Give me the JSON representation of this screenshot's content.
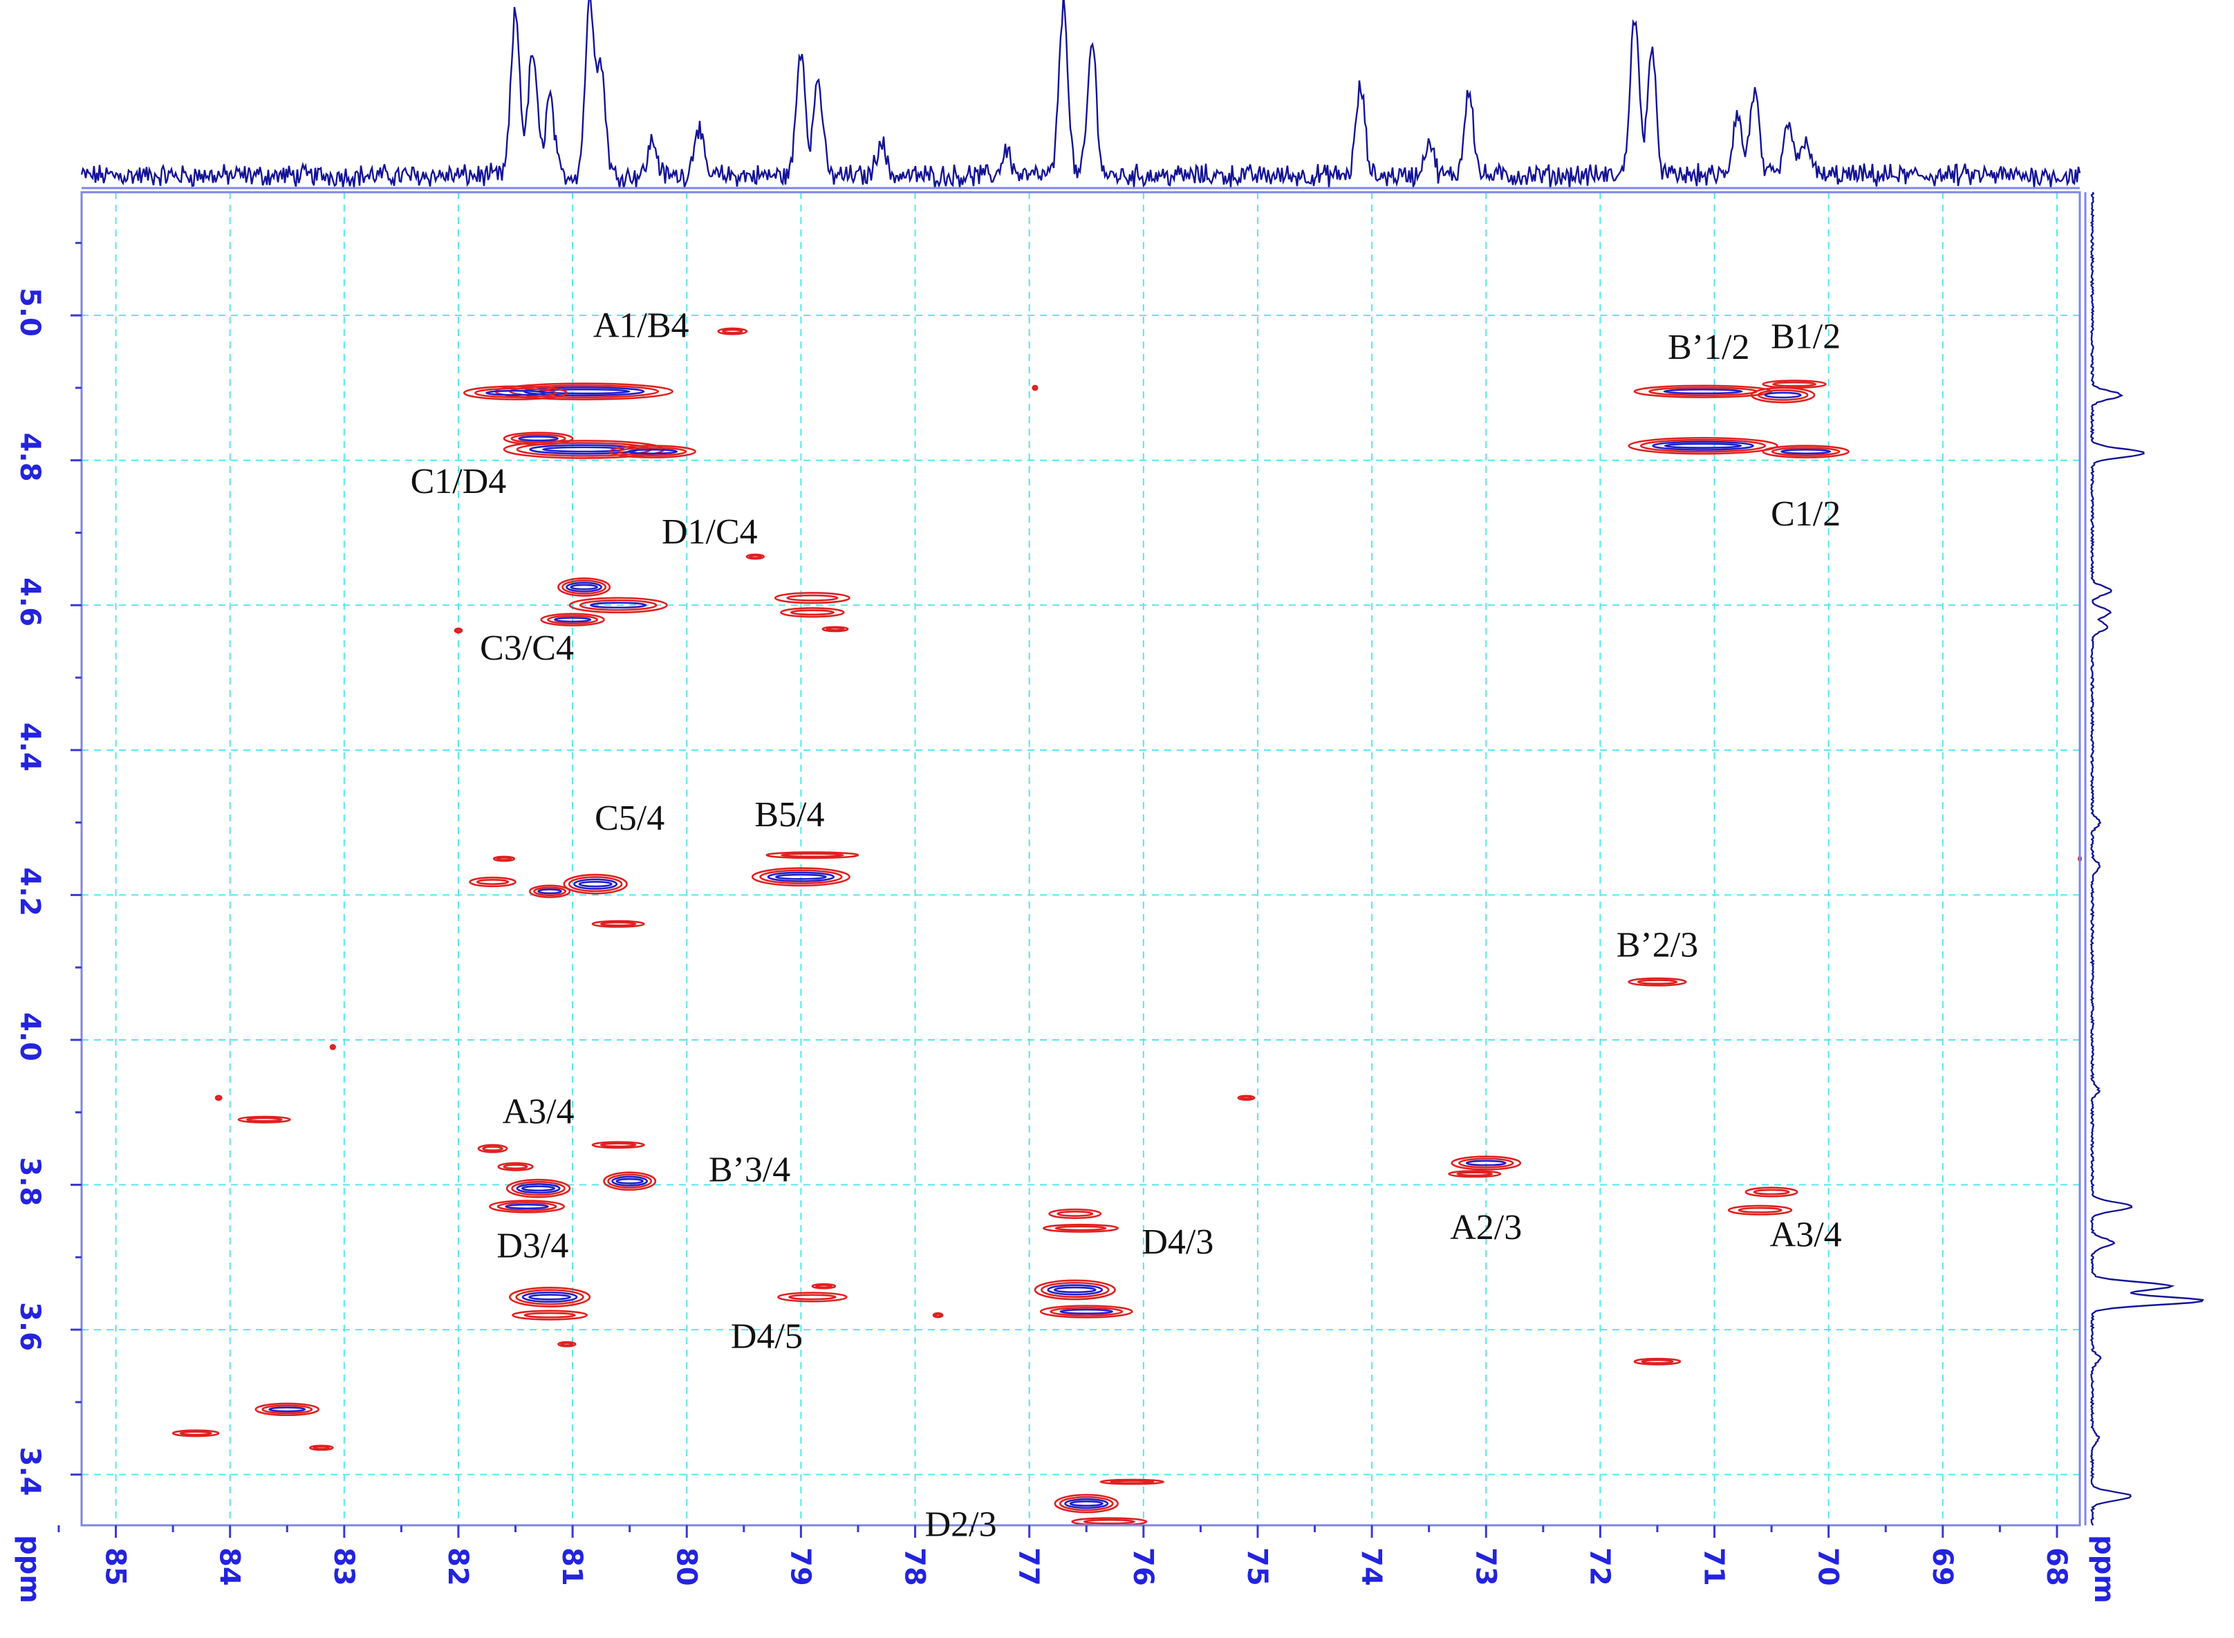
{
  "chart_data": {
    "type": "2d-nmr-contour",
    "title": "",
    "xlabel": "ppm",
    "ylabel": "ppm",
    "xlim": [
      85.3,
      67.8
    ],
    "ylim": [
      5.17,
      3.33
    ],
    "x_ticks": [
      85,
      84,
      83,
      82,
      81,
      80,
      79,
      78,
      77,
      76,
      75,
      74,
      73,
      72,
      71,
      70,
      69,
      68
    ],
    "y_ticks": [
      {
        "value": 5.0,
        "label": "5.0"
      },
      {
        "value": 4.8,
        "label": "4.8"
      },
      {
        "value": 4.6,
        "label": "4.6"
      },
      {
        "value": 4.4,
        "label": "4.4"
      },
      {
        "value": 4.2,
        "label": "4.2"
      },
      {
        "value": 4.0,
        "label": "4.0"
      },
      {
        "value": 3.8,
        "label": "3.8"
      },
      {
        "value": 3.6,
        "label": "3.6"
      },
      {
        "value": 3.4,
        "label": "3.4"
      }
    ],
    "grid": true,
    "colors": {
      "red": "#e02020",
      "blue": "#1f1fc8",
      "black": "#111111",
      "grid": "#55e6f0",
      "axis": "#2323e0",
      "spectrum": "#141496"
    },
    "top_projection_peaks": [
      {
        "ppm": 81.5,
        "height": 0.92
      },
      {
        "ppm": 81.35,
        "height": 0.7
      },
      {
        "ppm": 81.2,
        "height": 0.45
      },
      {
        "ppm": 80.85,
        "height": 0.98
      },
      {
        "ppm": 80.75,
        "height": 0.6
      },
      {
        "ppm": 80.3,
        "height": 0.2
      },
      {
        "ppm": 79.9,
        "height": 0.28
      },
      {
        "ppm": 79.0,
        "height": 0.72
      },
      {
        "ppm": 78.85,
        "height": 0.55
      },
      {
        "ppm": 78.3,
        "height": 0.2
      },
      {
        "ppm": 77.2,
        "height": 0.15
      },
      {
        "ppm": 76.7,
        "height": 0.97
      },
      {
        "ppm": 76.45,
        "height": 0.75
      },
      {
        "ppm": 74.1,
        "height": 0.5
      },
      {
        "ppm": 73.5,
        "height": 0.2
      },
      {
        "ppm": 73.15,
        "height": 0.5
      },
      {
        "ppm": 71.7,
        "height": 0.9
      },
      {
        "ppm": 71.55,
        "height": 0.7
      },
      {
        "ppm": 70.8,
        "height": 0.35
      },
      {
        "ppm": 70.65,
        "height": 0.48
      },
      {
        "ppm": 70.35,
        "height": 0.3
      },
      {
        "ppm": 70.2,
        "height": 0.22
      }
    ],
    "side_projection_peaks": [
      {
        "ppm": 4.89,
        "height": 0.22
      },
      {
        "ppm": 4.81,
        "height": 0.4
      },
      {
        "ppm": 4.62,
        "height": 0.15
      },
      {
        "ppm": 4.59,
        "height": 0.14
      },
      {
        "ppm": 4.57,
        "height": 0.12
      },
      {
        "ppm": 4.3,
        "height": 0.06
      },
      {
        "ppm": 4.24,
        "height": 0.06
      },
      {
        "ppm": 3.93,
        "height": 0.05
      },
      {
        "ppm": 3.77,
        "height": 0.3
      },
      {
        "ppm": 3.72,
        "height": 0.16
      },
      {
        "ppm": 3.66,
        "height": 0.6
      },
      {
        "ppm": 3.64,
        "height": 0.85
      },
      {
        "ppm": 3.56,
        "height": 0.06
      },
      {
        "ppm": 3.45,
        "height": 0.05
      },
      {
        "ppm": 3.37,
        "height": 0.3
      }
    ],
    "crosspeaks": [
      {
        "x": 80.9,
        "y": 4.895,
        "w": 1.55,
        "h": 0.011
      },
      {
        "x": 81.5,
        "y": 4.893,
        "w": 0.9,
        "h": 0.009
      },
      {
        "x": 80.9,
        "y": 4.815,
        "w": 1.4,
        "h": 0.012
      },
      {
        "x": 81.3,
        "y": 4.83,
        "w": 0.6,
        "h": 0.008
      },
      {
        "x": 80.3,
        "y": 4.812,
        "w": 0.75,
        "h": 0.008
      },
      {
        "x": 79.6,
        "y": 4.978,
        "w": 0.25,
        "h": 0.004
      },
      {
        "x": 80.9,
        "y": 4.625,
        "w": 0.45,
        "h": 0.012
      },
      {
        "x": 80.6,
        "y": 4.6,
        "w": 0.85,
        "h": 0.01
      },
      {
        "x": 81.0,
        "y": 4.58,
        "w": 0.55,
        "h": 0.008
      },
      {
        "x": 78.9,
        "y": 4.61,
        "w": 0.65,
        "h": 0.007
      },
      {
        "x": 78.9,
        "y": 4.59,
        "w": 0.55,
        "h": 0.006
      },
      {
        "x": 79.4,
        "y": 4.667,
        "w": 0.15,
        "h": 0.003
      },
      {
        "x": 78.7,
        "y": 4.567,
        "w": 0.22,
        "h": 0.003
      },
      {
        "x": 80.8,
        "y": 4.215,
        "w": 0.55,
        "h": 0.013
      },
      {
        "x": 81.2,
        "y": 4.205,
        "w": 0.35,
        "h": 0.008
      },
      {
        "x": 81.7,
        "y": 4.218,
        "w": 0.4,
        "h": 0.006
      },
      {
        "x": 80.6,
        "y": 4.16,
        "w": 0.45,
        "h": 0.004
      },
      {
        "x": 81.6,
        "y": 4.25,
        "w": 0.18,
        "h": 0.003
      },
      {
        "x": 79.0,
        "y": 4.225,
        "w": 0.85,
        "h": 0.012
      },
      {
        "x": 78.9,
        "y": 4.255,
        "w": 0.8,
        "h": 0.004
      },
      {
        "x": 81.3,
        "y": 3.795,
        "w": 0.55,
        "h": 0.012
      },
      {
        "x": 80.5,
        "y": 3.805,
        "w": 0.45,
        "h": 0.012
      },
      {
        "x": 81.4,
        "y": 3.77,
        "w": 0.65,
        "h": 0.008
      },
      {
        "x": 81.7,
        "y": 3.85,
        "w": 0.25,
        "h": 0.005
      },
      {
        "x": 81.5,
        "y": 3.825,
        "w": 0.3,
        "h": 0.005
      },
      {
        "x": 80.6,
        "y": 3.855,
        "w": 0.45,
        "h": 0.004
      },
      {
        "x": 81.2,
        "y": 3.645,
        "w": 0.7,
        "h": 0.013
      },
      {
        "x": 81.2,
        "y": 3.62,
        "w": 0.65,
        "h": 0.006
      },
      {
        "x": 81.05,
        "y": 3.58,
        "w": 0.15,
        "h": 0.003
      },
      {
        "x": 78.9,
        "y": 3.645,
        "w": 0.6,
        "h": 0.006
      },
      {
        "x": 78.8,
        "y": 3.66,
        "w": 0.2,
        "h": 0.003
      },
      {
        "x": 77.8,
        "y": 3.62,
        "w": 0.08,
        "h": 0.002
      },
      {
        "x": 76.6,
        "y": 3.76,
        "w": 0.45,
        "h": 0.006
      },
      {
        "x": 76.55,
        "y": 3.74,
        "w": 0.65,
        "h": 0.005
      },
      {
        "x": 76.6,
        "y": 3.655,
        "w": 0.7,
        "h": 0.013
      },
      {
        "x": 76.5,
        "y": 3.625,
        "w": 0.8,
        "h": 0.008
      },
      {
        "x": 76.5,
        "y": 3.36,
        "w": 0.55,
        "h": 0.012
      },
      {
        "x": 76.3,
        "y": 3.335,
        "w": 0.65,
        "h": 0.005
      },
      {
        "x": 76.1,
        "y": 3.39,
        "w": 0.55,
        "h": 0.003
      },
      {
        "x": 83.5,
        "y": 3.49,
        "w": 0.55,
        "h": 0.008
      },
      {
        "x": 84.3,
        "y": 3.457,
        "w": 0.4,
        "h": 0.004
      },
      {
        "x": 83.2,
        "y": 3.437,
        "w": 0.2,
        "h": 0.003
      },
      {
        "x": 83.7,
        "y": 3.89,
        "w": 0.45,
        "h": 0.004
      },
      {
        "x": 84.1,
        "y": 3.92,
        "w": 0.05,
        "h": 0.002
      },
      {
        "x": 83.1,
        "y": 3.99,
        "w": 0.04,
        "h": 0.002
      },
      {
        "x": 75.1,
        "y": 3.92,
        "w": 0.14,
        "h": 0.002
      },
      {
        "x": 76.95,
        "y": 4.9,
        "w": 0.04,
        "h": 0.002
      },
      {
        "x": 82.0,
        "y": 4.565,
        "w": 0.06,
        "h": 0.002
      },
      {
        "x": 73.0,
        "y": 3.83,
        "w": 0.6,
        "h": 0.009
      },
      {
        "x": 73.1,
        "y": 3.815,
        "w": 0.45,
        "h": 0.004
      },
      {
        "x": 70.5,
        "y": 3.79,
        "w": 0.45,
        "h": 0.006
      },
      {
        "x": 70.6,
        "y": 3.765,
        "w": 0.55,
        "h": 0.006
      },
      {
        "x": 71.1,
        "y": 4.895,
        "w": 1.2,
        "h": 0.008
      },
      {
        "x": 70.4,
        "y": 4.89,
        "w": 0.55,
        "h": 0.01
      },
      {
        "x": 70.3,
        "y": 4.905,
        "w": 0.55,
        "h": 0.005
      },
      {
        "x": 71.1,
        "y": 4.82,
        "w": 1.3,
        "h": 0.011
      },
      {
        "x": 70.2,
        "y": 4.812,
        "w": 0.75,
        "h": 0.008
      },
      {
        "x": 71.5,
        "y": 4.08,
        "w": 0.5,
        "h": 0.005
      },
      {
        "x": 71.5,
        "y": 3.556,
        "w": 0.4,
        "h": 0.004
      },
      {
        "x": 67.8,
        "y": 4.25,
        "w": 0.02,
        "h": 0.002
      }
    ],
    "peak_labels": [
      {
        "text": "A1/B4",
        "x": 80.4,
        "y": 4.97
      },
      {
        "text": "C1/D4",
        "x": 82.0,
        "y": 4.755
      },
      {
        "text": "D1/C4",
        "x": 79.8,
        "y": 4.685
      },
      {
        "text": "C3/C4",
        "x": 81.4,
        "y": 4.525
      },
      {
        "text": "C5/4",
        "x": 80.5,
        "y": 4.29
      },
      {
        "text": "B5/4",
        "x": 79.1,
        "y": 4.295
      },
      {
        "text": "A3/4",
        "x": 81.3,
        "y": 3.885
      },
      {
        "text": "B’3/4",
        "x": 79.45,
        "y": 3.805
      },
      {
        "text": "D3/4",
        "x": 81.35,
        "y": 3.7
      },
      {
        "text": "D4/5",
        "x": 79.3,
        "y": 3.575
      },
      {
        "text": "D4/3",
        "x": 75.7,
        "y": 3.705
      },
      {
        "text": "D2/3",
        "x": 77.6,
        "y": 3.315
      },
      {
        "text": "A2/3",
        "x": 73.0,
        "y": 3.725
      },
      {
        "text": "A3/4",
        "x": 70.2,
        "y": 3.715
      },
      {
        "text": "B’1/2",
        "x": 71.05,
        "y": 4.94
      },
      {
        "text": "B1/2",
        "x": 70.2,
        "y": 4.955
      },
      {
        "text": "C1/2",
        "x": 70.2,
        "y": 4.71
      },
      {
        "text": "B’2/3",
        "x": 71.5,
        "y": 4.115
      }
    ]
  }
}
